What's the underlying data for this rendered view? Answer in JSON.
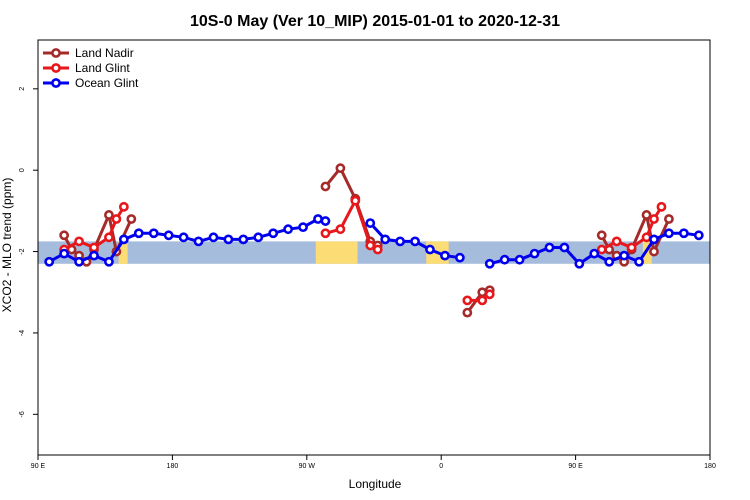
{
  "chart_data": {
    "type": "line",
    "title": "10S-0 May (Ver 10_MIP)   2015-01-01 to 2020-12-31",
    "xlabel": "Longitude",
    "ylabel": "XCO2 - MLO trend (ppm)",
    "xlim": [
      90,
      540
    ],
    "ylim": [
      -7,
      3.2
    ],
    "x_ticks": [
      {
        "value": 90,
        "label": "90 E"
      },
      {
        "value": 180,
        "label": "180"
      },
      {
        "value": 270,
        "label": "90 W"
      },
      {
        "value": 360,
        "label": "0"
      },
      {
        "value": 450,
        "label": "90 E"
      },
      {
        "value": 540,
        "label": "180"
      }
    ],
    "y_ticks": [
      {
        "value": 2,
        "label": "2"
      },
      {
        "value": 0,
        "label": "0"
      },
      {
        "value": -2,
        "label": "-2"
      },
      {
        "value": -4,
        "label": "-4"
      },
      {
        "value": -6,
        "label": "-6"
      }
    ],
    "band": {
      "ymin": -2.3,
      "ymax": -1.75,
      "ocean_color": "#a5bcdc",
      "land_color": "#fcdc74"
    },
    "land_spans": [
      [
        144,
        150
      ],
      [
        145,
        149
      ],
      [
        146,
        149
      ],
      [
        276,
        304
      ],
      [
        350,
        365
      ],
      [
        495,
        501
      ],
      [
        545,
        551
      ],
      [
        546,
        550
      ],
      [
        547,
        550
      ]
    ],
    "legend_position": "top-left",
    "series": [
      {
        "name": "Land Nadir",
        "color": "#a52a2a",
        "segments": [
          [
            [
              107.5,
              -1.6
            ],
            [
              112.5,
              -1.95
            ],
            [
              117.5,
              -2.1
            ],
            [
              122.5,
              -2.25
            ],
            [
              127.5,
              -1.95
            ],
            [
              137.5,
              -1.1
            ],
            [
              142.5,
              -2.0
            ],
            [
              152.5,
              -1.2
            ]
          ],
          [
            [
              282.5,
              -0.4
            ],
            [
              292.5,
              0.05
            ],
            [
              302.5,
              -0.7
            ],
            [
              312.5,
              -1.75
            ],
            [
              317.5,
              -1.85
            ]
          ],
          [
            [
              377.5,
              -3.5
            ],
            [
              387.5,
              -3.0
            ],
            [
              392.5,
              -2.95
            ]
          ],
          [
            [
              467.5,
              -1.6
            ],
            [
              472.5,
              -1.95
            ],
            [
              477.5,
              -2.1
            ],
            [
              482.5,
              -2.25
            ],
            [
              487.5,
              -1.95
            ],
            [
              497.5,
              -1.1
            ],
            [
              502.5,
              -2.0
            ],
            [
              512.5,
              -1.2
            ]
          ]
        ]
      },
      {
        "name": "Land Glint",
        "color": "#e8171b",
        "segments": [
          [
            [
              107.5,
              -1.95
            ],
            [
              117.5,
              -1.75
            ],
            [
              127.5,
              -1.9
            ],
            [
              137.5,
              -1.65
            ],
            [
              142.5,
              -1.2
            ],
            [
              147.5,
              -0.9
            ]
          ],
          [
            [
              282.5,
              -1.55
            ],
            [
              292.5,
              -1.45
            ],
            [
              302.5,
              -0.75
            ],
            [
              312.5,
              -1.85
            ],
            [
              317.5,
              -1.95
            ]
          ],
          [
            [
              377.5,
              -3.2
            ],
            [
              387.5,
              -3.2
            ],
            [
              392.5,
              -3.05
            ]
          ],
          [
            [
              467.5,
              -1.95
            ],
            [
              477.5,
              -1.75
            ],
            [
              487.5,
              -1.9
            ],
            [
              497.5,
              -1.65
            ],
            [
              502.5,
              -1.2
            ],
            [
              507.5,
              -0.9
            ]
          ]
        ]
      },
      {
        "name": "Ocean Glint",
        "color": "#0000ee",
        "segments": [
          [
            [
              97.5,
              -2.25
            ],
            [
              107.5,
              -2.05
            ],
            [
              117.5,
              -2.25
            ],
            [
              127.5,
              -2.1
            ],
            [
              137.5,
              -2.25
            ],
            [
              147.5,
              -1.7
            ],
            [
              157.5,
              -1.55
            ],
            [
              167.5,
              -1.55
            ],
            [
              177.5,
              -1.6
            ],
            [
              187.5,
              -1.65
            ],
            [
              197.5,
              -1.75
            ],
            [
              207.5,
              -1.65
            ],
            [
              217.5,
              -1.7
            ],
            [
              227.5,
              -1.7
            ],
            [
              237.5,
              -1.65
            ],
            [
              247.5,
              -1.55
            ],
            [
              257.5,
              -1.45
            ],
            [
              267.5,
              -1.4
            ],
            [
              277.5,
              -1.2
            ],
            [
              282.5,
              -1.25
            ]
          ],
          [
            [
              312.5,
              -1.3
            ],
            [
              322.5,
              -1.7
            ],
            [
              332.5,
              -1.75
            ],
            [
              342.5,
              -1.75
            ],
            [
              352.5,
              -1.95
            ],
            [
              362.5,
              -2.1
            ],
            [
              372.5,
              -2.15
            ]
          ],
          [
            [
              392.5,
              -2.3
            ],
            [
              402.5,
              -2.2
            ],
            [
              412.5,
              -2.2
            ],
            [
              422.5,
              -2.05
            ],
            [
              432.5,
              -1.9
            ],
            [
              442.5,
              -1.9
            ],
            [
              452.5,
              -2.3
            ],
            [
              462.5,
              -2.05
            ],
            [
              472.5,
              -2.25
            ],
            [
              482.5,
              -2.1
            ],
            [
              492.5,
              -2.25
            ],
            [
              502.5,
              -1.7
            ],
            [
              512.5,
              -1.55
            ],
            [
              522.5,
              -1.55
            ],
            [
              532.5,
              -1.6
            ]
          ]
        ]
      }
    ]
  }
}
